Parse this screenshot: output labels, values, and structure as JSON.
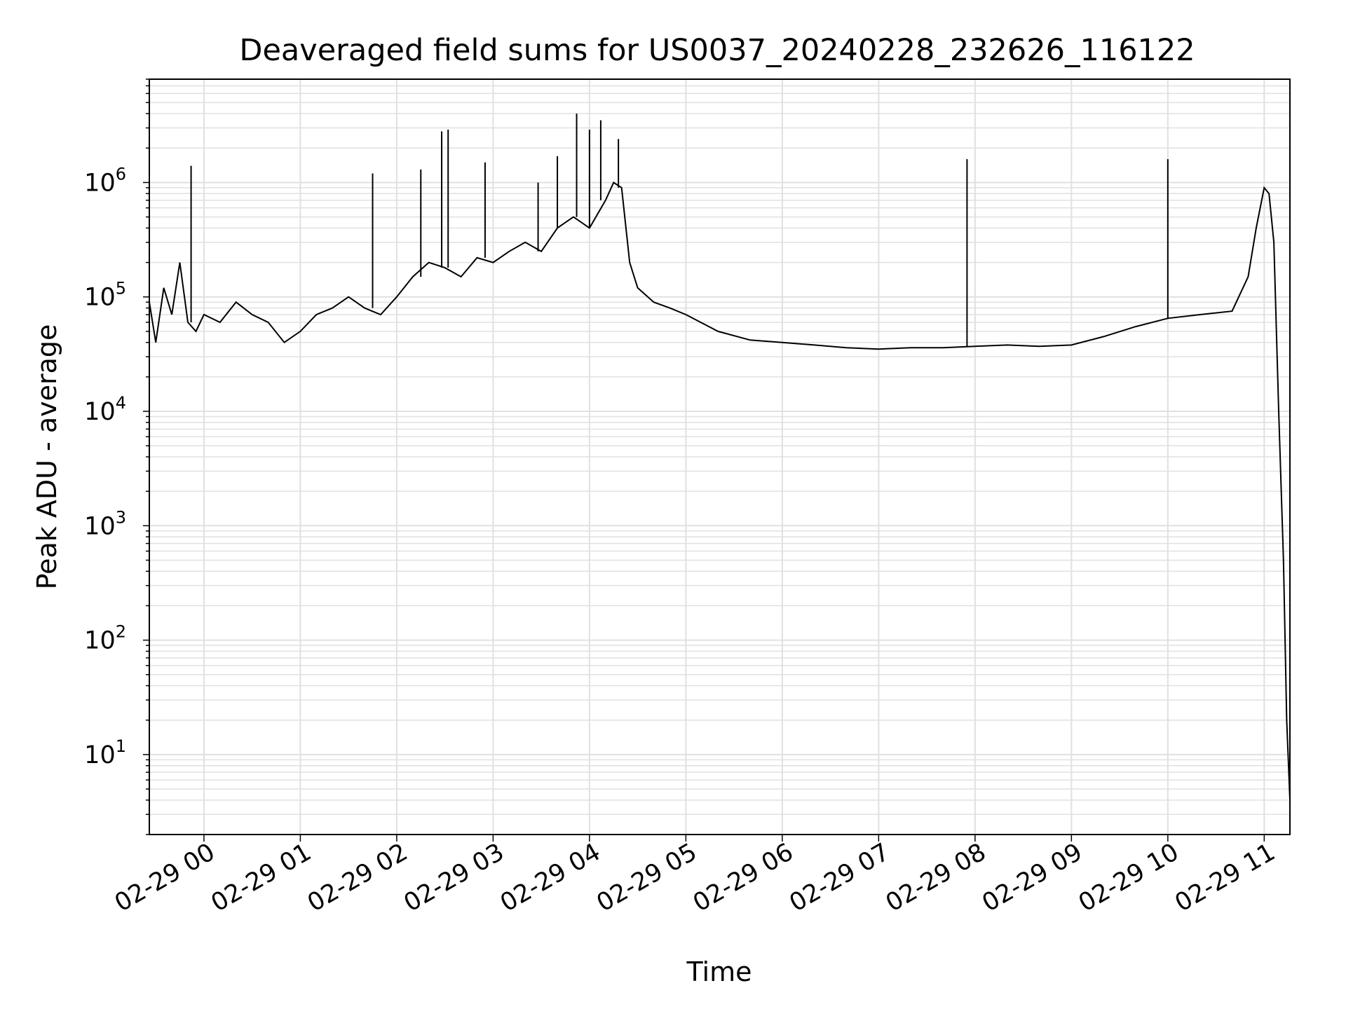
{
  "chart_data": {
    "type": "line",
    "title": "Deaveraged field sums for US0037_20240228_232626_116122",
    "xlabel": "Time",
    "ylabel": "Peak ADU - average",
    "x_axis": {
      "type": "time",
      "range": [
        "02-28 23:26",
        "02-29 11:16"
      ],
      "tick_labels": [
        "02-29 00",
        "02-29 01",
        "02-29 02",
        "02-29 03",
        "02-29 04",
        "02-29 05",
        "02-29 06",
        "02-29 07",
        "02-29 08",
        "02-29 09",
        "02-29 10",
        "02-29 11"
      ],
      "tick_values": [
        "02-29 00:00",
        "02-29 01:00",
        "02-29 02:00",
        "02-29 03:00",
        "02-29 04:00",
        "02-29 05:00",
        "02-29 06:00",
        "02-29 07:00",
        "02-29 08:00",
        "02-29 09:00",
        "02-29 10:00",
        "02-29 11:00"
      ]
    },
    "y_axis": {
      "scale": "log",
      "ylim": [
        2,
        8000000
      ],
      "tick_values": [
        10,
        100,
        1000,
        10000,
        100000,
        1000000
      ],
      "tick_labels": [
        "10^1",
        "10^2",
        "10^3",
        "10^4",
        "10^5",
        "10^6"
      ]
    },
    "grid": true,
    "line_color": "#000000",
    "grid_color": "#e0e0e0",
    "series": [
      {
        "x": [
          "02-28 23:26",
          "02-28 23:30",
          "02-28 23:35",
          "02-28 23:40",
          "02-28 23:45",
          "02-28 23:50",
          "02-28 23:55",
          "02-29 00:00",
          "02-29 00:10",
          "02-29 00:20",
          "02-29 00:30",
          "02-29 00:40",
          "02-29 00:50",
          "02-29 01:00",
          "02-29 01:10",
          "02-29 01:20",
          "02-29 01:30",
          "02-29 01:40",
          "02-29 01:50",
          "02-29 02:00",
          "02-29 02:10",
          "02-29 02:20",
          "02-29 02:30",
          "02-29 02:40",
          "02-29 02:50",
          "02-29 03:00",
          "02-29 03:10",
          "02-29 03:20",
          "02-29 03:30",
          "02-29 03:40",
          "02-29 03:50",
          "02-29 04:00",
          "02-29 04:10",
          "02-29 04:15",
          "02-29 04:20",
          "02-29 04:25",
          "02-29 04:30",
          "02-29 04:40",
          "02-29 04:50",
          "02-29 05:00",
          "02-29 05:20",
          "02-29 05:40",
          "02-29 06:00",
          "02-29 06:20",
          "02-29 06:40",
          "02-29 07:00",
          "02-29 07:20",
          "02-29 07:40",
          "02-29 08:00",
          "02-29 08:20",
          "02-29 08:40",
          "02-29 09:00",
          "02-29 09:20",
          "02-29 09:40",
          "02-29 10:00",
          "02-29 10:20",
          "02-29 10:40",
          "02-29 10:50",
          "02-29 10:55",
          "02-29 11:00",
          "02-29 11:03",
          "02-29 11:06",
          "02-29 11:09",
          "02-29 11:12",
          "02-29 11:14",
          "02-29 11:16"
        ],
        "y": [
          90000,
          40000,
          120000,
          70000,
          200000,
          60000,
          50000,
          70000,
          60000,
          90000,
          70000,
          60000,
          40000,
          50000,
          70000,
          80000,
          100000,
          80000,
          70000,
          100000,
          150000,
          200000,
          180000,
          150000,
          220000,
          200000,
          250000,
          300000,
          250000,
          400000,
          500000,
          400000,
          700000,
          1000000,
          900000,
          200000,
          120000,
          90000,
          80000,
          70000,
          50000,
          42000,
          40000,
          38000,
          36000,
          35000,
          36000,
          36000,
          37000,
          38000,
          37000,
          38000,
          45000,
          55000,
          65000,
          70000,
          75000,
          150000,
          400000,
          900000,
          800000,
          300000,
          10000,
          500,
          20,
          4
        ]
      }
    ],
    "spikes": [
      {
        "x": "02-28 23:52",
        "y": 1400000
      },
      {
        "x": "02-29 01:45",
        "y": 1200000
      },
      {
        "x": "02-29 02:15",
        "y": 1300000
      },
      {
        "x": "02-29 02:28",
        "y": 2800000
      },
      {
        "x": "02-29 02:32",
        "y": 2900000
      },
      {
        "x": "02-29 02:55",
        "y": 1500000
      },
      {
        "x": "02-29 03:28",
        "y": 1000000
      },
      {
        "x": "02-29 03:40",
        "y": 1700000
      },
      {
        "x": "02-29 03:52",
        "y": 4000000
      },
      {
        "x": "02-29 04:00",
        "y": 2900000
      },
      {
        "x": "02-29 04:07",
        "y": 3500000
      },
      {
        "x": "02-29 04:18",
        "y": 2400000
      },
      {
        "x": "02-29 07:55",
        "y": 1600000
      },
      {
        "x": "02-29 10:00",
        "y": 1600000
      }
    ]
  }
}
